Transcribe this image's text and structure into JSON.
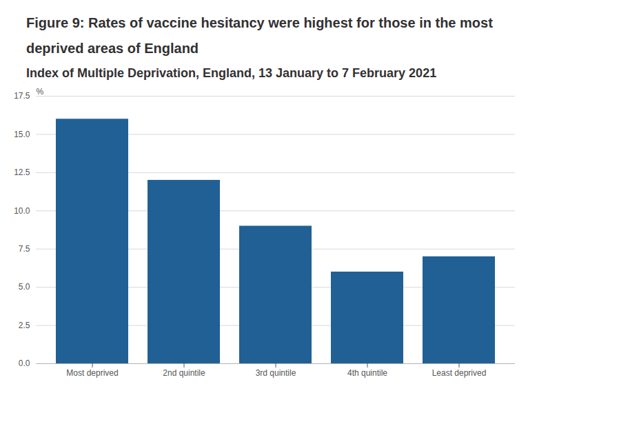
{
  "chart_data": {
    "type": "bar",
    "title": "Figure 9: Rates of vaccine hesitancy were highest for those in the most deprived areas of England",
    "subtitle": "Index of Multiple Deprivation, England, 13 January to 7 February 2021",
    "y_label": "%",
    "categories": [
      "Most deprived",
      "2nd quintile",
      "3rd quintile",
      "4th quintile",
      "Least deprived"
    ],
    "values": [
      16,
      12,
      9,
      6,
      7
    ],
    "color": "#206095",
    "ylim": [
      0,
      17.5
    ],
    "yticks": [
      {
        "value": 0,
        "label": "0.0"
      },
      2.5,
      {
        "value": 5,
        "label": "5.0"
      },
      7.5,
      {
        "value": 10,
        "label": "10.0"
      },
      12.5,
      {
        "value": 15,
        "label": "15.0"
      },
      17.5
    ],
    "grid": true
  }
}
